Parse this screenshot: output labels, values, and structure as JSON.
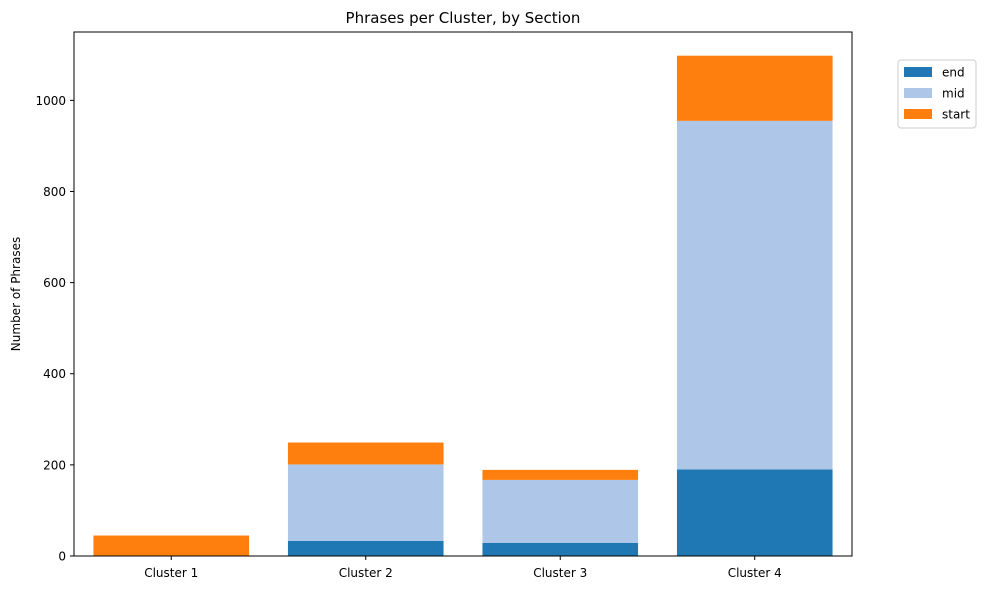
{
  "chart_data": {
    "type": "bar",
    "stacked": true,
    "title": "Phrases per Cluster, by Section",
    "xlabel": "",
    "ylabel": "Number of Phrases",
    "ylim": [
      0,
      1150
    ],
    "yticks": [
      0,
      200,
      400,
      600,
      800,
      1000
    ],
    "categories": [
      "Cluster 1",
      "Cluster 2",
      "Cluster 3",
      "Cluster 4"
    ],
    "series": [
      {
        "name": "end",
        "color": "#1f77b4",
        "values": [
          0,
          33,
          29,
          190
        ]
      },
      {
        "name": "mid",
        "color": "#aec7e8",
        "values": [
          0,
          168,
          138,
          765
        ]
      },
      {
        "name": "start",
        "color": "#ff7f0e",
        "values": [
          45,
          48,
          22,
          143
        ]
      }
    ],
    "grid": false,
    "legend": {
      "placement": "top-right, outside plot area"
    }
  }
}
